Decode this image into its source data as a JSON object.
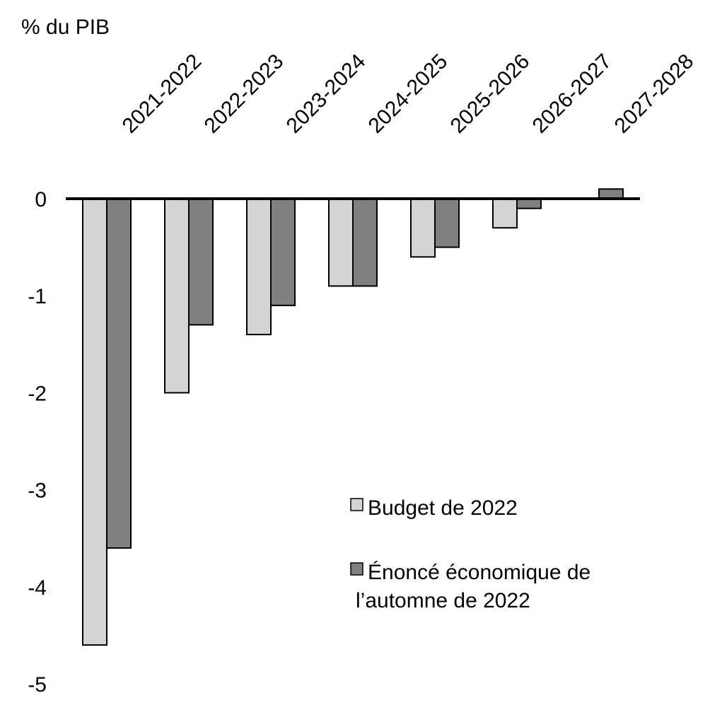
{
  "chart_data": {
    "type": "bar",
    "ylabel": "% du PIB",
    "categories": [
      "2021-2022",
      "2022-2023",
      "2023-2024",
      "2024-2025",
      "2025-2026",
      "2026-2027",
      "2027-2028"
    ],
    "series": [
      {
        "name": "Budget de 2022",
        "color": "#d4d4d4",
        "values": [
          -4.6,
          -2.0,
          -1.4,
          -0.9,
          -0.6,
          -0.3,
          null
        ]
      },
      {
        "name": "Énoncé économique de l’automne de 2022",
        "color": "#808080",
        "values": [
          -3.6,
          -1.3,
          -1.1,
          -0.9,
          -0.5,
          -0.1,
          0.1
        ]
      }
    ],
    "yticks": [
      "0",
      "-1",
      "-2",
      "-3",
      "-4",
      "-5"
    ],
    "ylim": [
      -5,
      0
    ],
    "grid": false,
    "legend_position": "bottom-right",
    "legend": [
      {
        "lines": [
          "Budget de 2022"
        ]
      },
      {
        "lines": [
          "Énoncé économique de",
          "l’automne de 2022"
        ]
      }
    ]
  }
}
